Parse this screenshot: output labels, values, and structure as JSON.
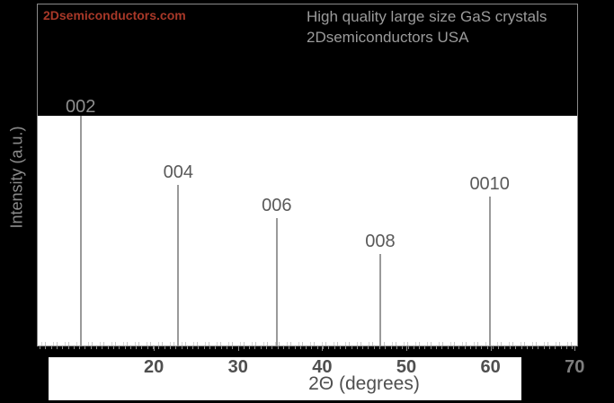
{
  "branding": {
    "watermark": "2Dsemiconductors.com",
    "watermark_color": "#a83828"
  },
  "header": {
    "line1": "High quality large size GaS crystals",
    "line2": "2Dsemiconductors USA",
    "text_color": "#9b9b9b"
  },
  "chart_data": {
    "type": "line",
    "subtype": "xrd-diffraction-pattern",
    "title": "High quality large size GaS crystals 2Dsemiconductors USA",
    "xlabel": "2Θ (degrees)",
    "ylabel": "Intensity (a.u.)",
    "xlim": [
      6.1,
      70.4
    ],
    "x_ticks": [
      20,
      30,
      40,
      50,
      60,
      70
    ],
    "y_axis_units": "arbitrary",
    "grid": false,
    "legend": "none",
    "background_color": "#000000",
    "plot_background_color": "#ffffff",
    "line_color": "#9a9a9a",
    "peaks": [
      {
        "label": "002",
        "two_theta": 11.3,
        "rel_intensity": 1.0
      },
      {
        "label": "004",
        "two_theta": 22.9,
        "rel_intensity": 0.7
      },
      {
        "label": "006",
        "two_theta": 34.6,
        "rel_intensity": 0.555
      },
      {
        "label": "008",
        "two_theta": 46.9,
        "rel_intensity": 0.4
      },
      {
        "label": "0010",
        "two_theta": 59.9,
        "rel_intensity": 0.65
      }
    ]
  }
}
